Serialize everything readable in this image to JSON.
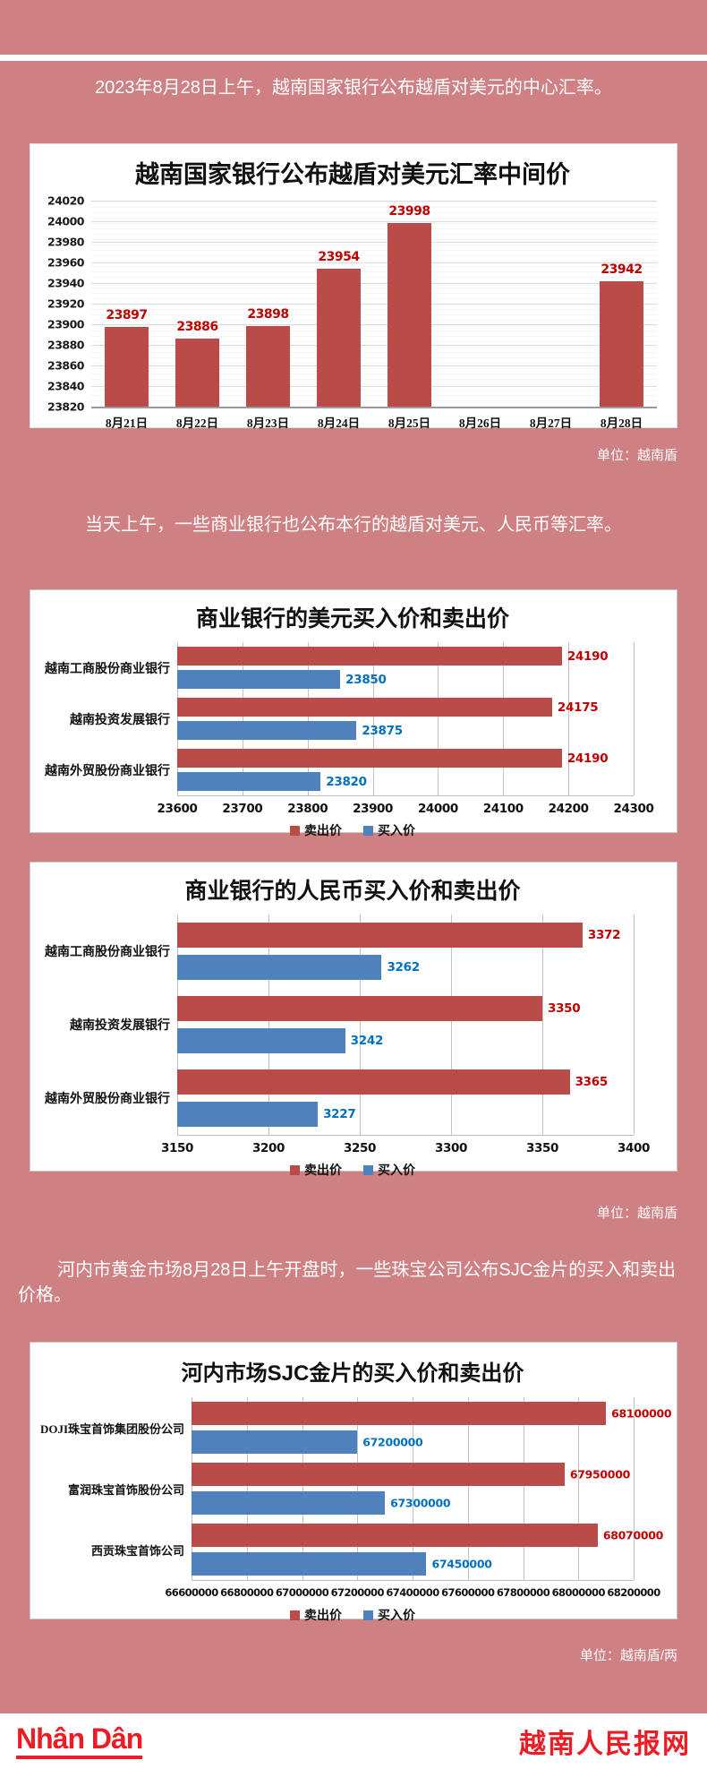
{
  "page": {
    "intro_1": "2023年8月28日上午，越南国家银行公布越盾对美元的中心汇率。",
    "intro_2": "当天上午，一些商业银行也公布本行的越盾对美元、人民币等汇率。",
    "intro_3": "河内市黄金市场8月28日上午开盘时，一些珠宝公司公布SJC金片的买入和卖出价格。",
    "unit_label_1": "单位：越南盾",
    "unit_label_2": "单位：越南盾",
    "unit_label_3": "单位：越南盾/两"
  },
  "colors": {
    "page_bg": "#ce8083",
    "bar_red": "#b94b48",
    "bar_blue": "#4f81bd",
    "value_label_red": "#c00000",
    "value_label_blue": "#0070c0",
    "footer_red": "#ed1b23"
  },
  "footer": {
    "logo_text": "Nhân Dân",
    "site_name": "越南人民报网"
  },
  "chart_data": [
    {
      "id": "central-rate",
      "type": "bar",
      "title": "越南国家银行公布越盾对美元汇率中间价",
      "categories": [
        "8月21日",
        "8月22日",
        "8月23日",
        "8月24日",
        "8月25日",
        "8月26日",
        "8月27日",
        "8月28日"
      ],
      "values": [
        23897,
        23886,
        23898,
        23954,
        23998,
        null,
        null,
        23942
      ],
      "ylim": [
        23820,
        24020
      ],
      "ytick_step": 20,
      "bar_color": "#b94b48",
      "label_color": "#c00000",
      "grid": true,
      "legend": "none",
      "xlabel": "",
      "ylabel": ""
    },
    {
      "id": "usd",
      "type": "bar-h",
      "title": "商业银行的美元买入价和卖出价",
      "categories": [
        "越南工商股份商业银行",
        "越南投资发展银行",
        "越南外贸股份商业银行"
      ],
      "series": [
        {
          "name": "卖出价",
          "color": "#b94b48",
          "label_color": "#c00000",
          "values": [
            24190,
            24175,
            24190
          ]
        },
        {
          "name": "买入价",
          "color": "#4f81bd",
          "label_color": "#0070c0",
          "values": [
            23850,
            23875,
            23820
          ]
        }
      ],
      "xlim": [
        23600,
        24300
      ],
      "xtick_step": 100,
      "grid": true,
      "legend": "bottom"
    },
    {
      "id": "cny",
      "type": "bar-h",
      "title": "商业银行的人民币买入价和卖出价",
      "categories": [
        "越南工商股份商业银行",
        "越南投资发展银行",
        "越南外贸股份商业银行"
      ],
      "series": [
        {
          "name": "卖出价",
          "color": "#b94b48",
          "label_color": "#c00000",
          "values": [
            3372,
            3350,
            3365
          ]
        },
        {
          "name": "买入价",
          "color": "#4f81bd",
          "label_color": "#0070c0",
          "values": [
            3262,
            3242,
            3227
          ]
        }
      ],
      "xlim": [
        3150,
        3400
      ],
      "xtick_step": 50,
      "grid": true,
      "legend": "bottom"
    },
    {
      "id": "sjc",
      "type": "bar-h",
      "title": "河内市场SJC金片的买入价和卖出价",
      "categories": [
        "DOJI珠宝首饰集团股份公司",
        "富润珠宝首饰股份公司",
        "西贡珠宝首饰公司"
      ],
      "series": [
        {
          "name": "卖出价",
          "color": "#b94b48",
          "label_color": "#c00000",
          "values": [
            68100000,
            67950000,
            68070000
          ]
        },
        {
          "name": "买入价",
          "color": "#4f81bd",
          "label_color": "#0070c0",
          "values": [
            67200000,
            67300000,
            67450000
          ]
        }
      ],
      "xlim": [
        66600000,
        68200000
      ],
      "xtick_step": 200000,
      "grid": true,
      "legend": "bottom"
    }
  ]
}
